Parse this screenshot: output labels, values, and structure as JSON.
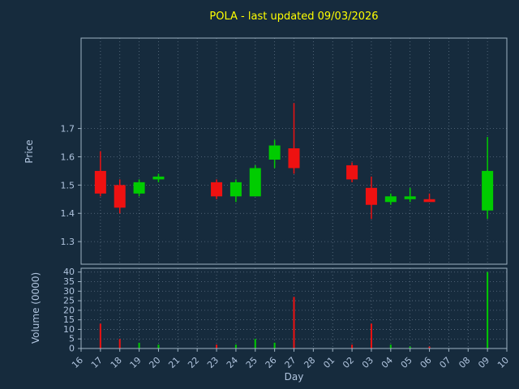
{
  "title": "POLA - last updated 09/03/2026",
  "colors": {
    "background": "#162b3d",
    "title": "#ffff00",
    "axis_label": "#b0c4de",
    "tick_label": "#b0c4de",
    "grid": "#5f7285",
    "spine": "#9fb3c4",
    "candle_up": "#00cc00",
    "candle_down": "#ee1111"
  },
  "chart_data": {
    "type": "candlestick",
    "title": "POLA - last updated 09/03/2026",
    "xlabel": "Day",
    "grid": "dotted",
    "x_categories": [
      "16",
      "17",
      "18",
      "19",
      "20",
      "21",
      "22",
      "23",
      "24",
      "25",
      "26",
      "27",
      "28",
      "01",
      "02",
      "03",
      "04",
      "05",
      "06",
      "07",
      "08",
      "09",
      "10"
    ],
    "price_axis": {
      "label": "Price",
      "ticks": [
        1.3,
        1.4,
        1.5,
        1.6,
        1.7
      ],
      "ylim": [
        1.22,
        2.02
      ]
    },
    "volume_axis": {
      "label": "Volume (0000)",
      "ticks": [
        0,
        5,
        10,
        15,
        20,
        25,
        30,
        35,
        40
      ],
      "ylim": [
        0,
        42
      ]
    },
    "candles": [
      {
        "day": "17",
        "open": 1.55,
        "high": 1.62,
        "low": 1.46,
        "close": 1.47,
        "volume": 13
      },
      {
        "day": "18",
        "open": 1.5,
        "high": 1.52,
        "low": 1.4,
        "close": 1.42,
        "volume": 5
      },
      {
        "day": "19",
        "open": 1.47,
        "high": 1.52,
        "low": 1.46,
        "close": 1.51,
        "volume": 3
      },
      {
        "day": "20",
        "open": 1.52,
        "high": 1.54,
        "low": 1.51,
        "close": 1.53,
        "volume": 2
      },
      {
        "day": "23",
        "open": 1.51,
        "high": 1.52,
        "low": 1.45,
        "close": 1.46,
        "volume": 2
      },
      {
        "day": "24",
        "open": 1.46,
        "high": 1.52,
        "low": 1.44,
        "close": 1.51,
        "volume": 2
      },
      {
        "day": "25",
        "open": 1.46,
        "high": 1.57,
        "low": 1.46,
        "close": 1.56,
        "volume": 5
      },
      {
        "day": "26",
        "open": 1.59,
        "high": 1.66,
        "low": 1.56,
        "close": 1.64,
        "volume": 3
      },
      {
        "day": "27",
        "open": 1.63,
        "high": 1.79,
        "low": 1.54,
        "close": 1.56,
        "volume": 27
      },
      {
        "day": "02",
        "open": 1.57,
        "high": 1.58,
        "low": 1.51,
        "close": 1.52,
        "volume": 2
      },
      {
        "day": "03",
        "open": 1.49,
        "high": 1.53,
        "low": 1.38,
        "close": 1.43,
        "volume": 13
      },
      {
        "day": "04",
        "open": 1.44,
        "high": 1.47,
        "low": 1.43,
        "close": 1.46,
        "volume": 2
      },
      {
        "day": "05",
        "open": 1.45,
        "high": 1.49,
        "low": 1.44,
        "close": 1.46,
        "volume": 1
      },
      {
        "day": "06",
        "open": 1.45,
        "high": 1.47,
        "low": 1.44,
        "close": 1.44,
        "volume": 1
      },
      {
        "day": "09",
        "open": 1.41,
        "high": 1.67,
        "low": 1.38,
        "close": 1.55,
        "volume": 40
      }
    ]
  }
}
